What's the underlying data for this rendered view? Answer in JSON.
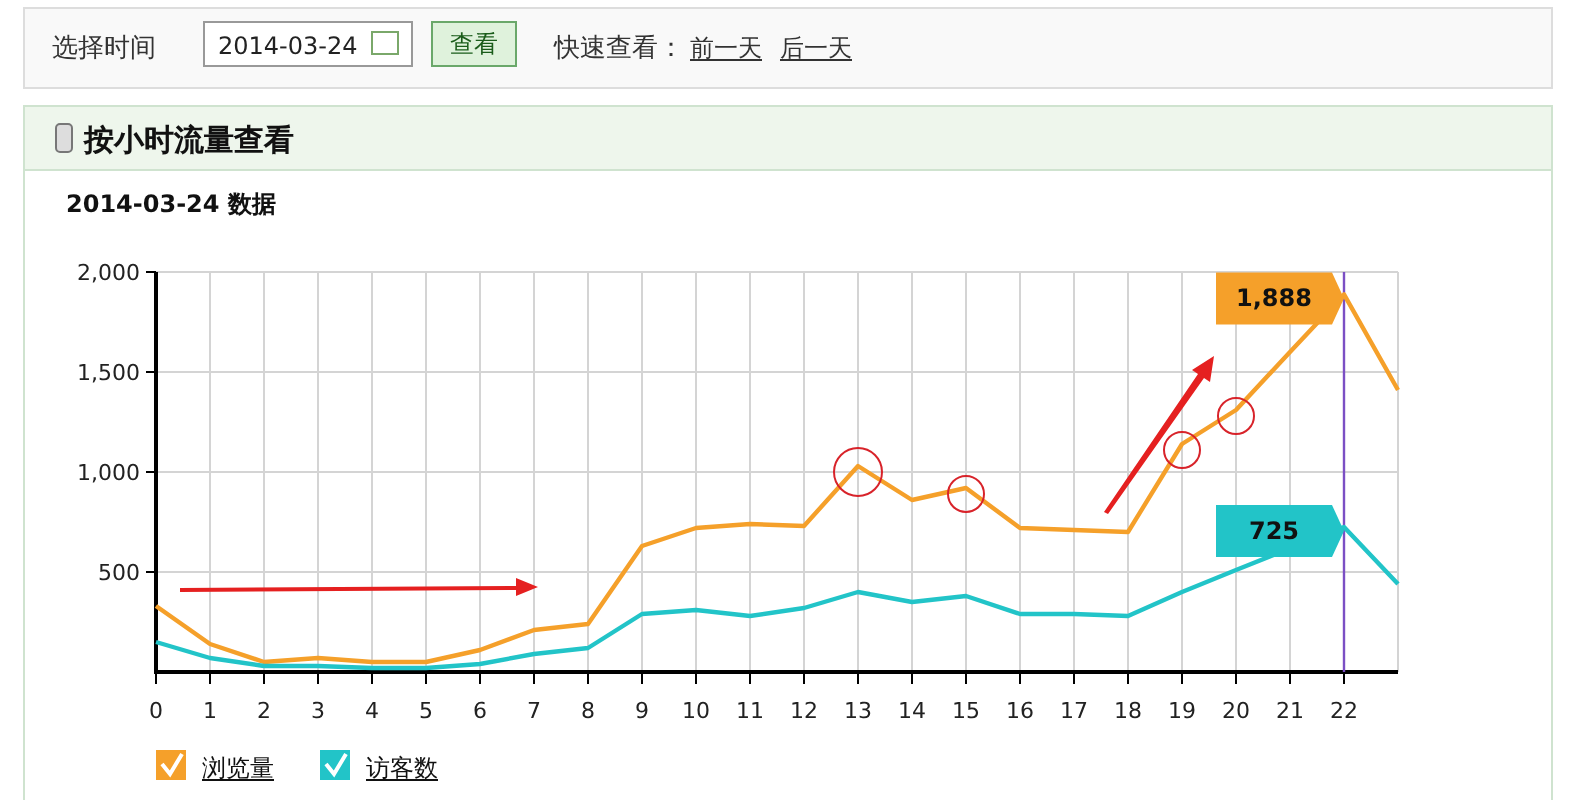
{
  "chart_data": {
    "type": "line",
    "title": "2014-03-24 数据",
    "subtitle": "按小时流量查看",
    "annotations": [
      "选择时间",
      "2014-03-24",
      "查看",
      "快速查看：",
      "前一天",
      "后一天",
      {
        "text": "1,888",
        "x": 22,
        "y": 1888
      },
      {
        "text": "725",
        "x": 22,
        "y": 725
      }
    ],
    "x": [
      0,
      1,
      2,
      3,
      4,
      5,
      6,
      7,
      8,
      9,
      10,
      11,
      12,
      13,
      14,
      15,
      16,
      17,
      18,
      19,
      20,
      21,
      22,
      23
    ],
    "xlim": [
      0,
      23
    ],
    "xticks": [
      0,
      1,
      2,
      3,
      4,
      5,
      6,
      7,
      8,
      9,
      10,
      11,
      12,
      13,
      14,
      15,
      16,
      17,
      18,
      19,
      20,
      21,
      22
    ],
    "ylim": [
      0,
      2000
    ],
    "yticks": [
      {
        "value": 500,
        "label": "500"
      },
      {
        "value": 1000,
        "label": "1,000"
      },
      {
        "value": 1500,
        "label": "1,500"
      },
      {
        "value": 2000,
        "label": "2,000"
      }
    ],
    "grid": true,
    "legend": "bottom left",
    "ref_lines": [
      {
        "axis": "x",
        "value": 22,
        "color": "#7b4fc4"
      }
    ],
    "series": [
      {
        "name": "浏览量",
        "color": "#f5a02a",
        "values": [
          330,
          140,
          50,
          70,
          50,
          50,
          110,
          210,
          240,
          630,
          720,
          740,
          730,
          1030,
          860,
          920,
          720,
          710,
          700,
          1140,
          1310,
          1600,
          1888,
          1410
        ]
      },
      {
        "name": "访客数",
        "color": "#22c4c8",
        "values": [
          150,
          70,
          30,
          30,
          20,
          20,
          40,
          90,
          120,
          290,
          310,
          280,
          320,
          400,
          350,
          380,
          290,
          290,
          280,
          400,
          510,
          null,
          725,
          440
        ]
      }
    ]
  }
}
